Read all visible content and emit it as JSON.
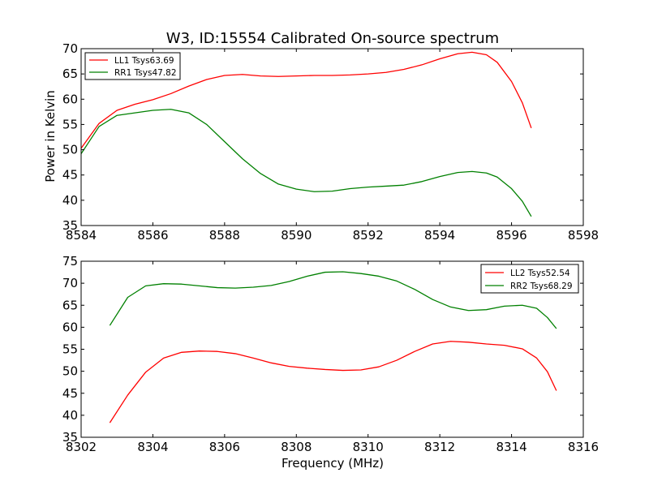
{
  "colors": {
    "red": "#ff0000",
    "green": "#008000"
  },
  "chart_data": [
    {
      "type": "line",
      "title": "W3, ID:15554 Calibrated On-source spectrum",
      "xlabel": "",
      "ylabel": "Power in Kelvin",
      "xlim": [
        8584,
        8598
      ],
      "ylim": [
        35,
        70
      ],
      "xticks": [
        "8584",
        "8586",
        "8588",
        "8590",
        "8592",
        "8594",
        "8596",
        "8598"
      ],
      "yticks": [
        "35",
        "40",
        "45",
        "50",
        "55",
        "60",
        "65",
        "70"
      ],
      "legend_position": "top-left",
      "grid": false,
      "series": [
        {
          "name": "LL1 Tsys63.69",
          "color": "#ff0000",
          "x": [
            8584.0,
            8584.5,
            8585.0,
            8585.5,
            8586.0,
            8586.5,
            8587.0,
            8587.5,
            8588.0,
            8588.5,
            8589.0,
            8589.5,
            8590.0,
            8590.5,
            8591.0,
            8591.5,
            8592.0,
            8592.5,
            8593.0,
            8593.5,
            8594.0,
            8594.5,
            8594.9,
            8595.3,
            8595.6,
            8596.0,
            8596.3,
            8596.55
          ],
          "y": [
            50.3,
            55.2,
            57.8,
            59.0,
            59.9,
            61.1,
            62.6,
            63.9,
            64.7,
            64.9,
            64.6,
            64.5,
            64.6,
            64.7,
            64.7,
            64.8,
            65.0,
            65.3,
            65.9,
            66.8,
            68.0,
            69.0,
            69.3,
            68.8,
            67.3,
            63.5,
            59.3,
            54.3
          ]
        },
        {
          "name": "RR1 Tsys47.82",
          "color": "#008000",
          "x": [
            8584.0,
            8584.5,
            8585.0,
            8585.5,
            8586.0,
            8586.5,
            8587.0,
            8587.5,
            8588.0,
            8588.5,
            8589.0,
            8589.5,
            8590.0,
            8590.5,
            8591.0,
            8591.5,
            8592.0,
            8592.5,
            8593.0,
            8593.5,
            8594.0,
            8594.5,
            8594.9,
            8595.3,
            8595.6,
            8596.0,
            8596.3,
            8596.55
          ],
          "y": [
            49.2,
            54.6,
            56.8,
            57.3,
            57.8,
            58.0,
            57.3,
            55.0,
            51.6,
            48.2,
            45.3,
            43.2,
            42.2,
            41.7,
            41.8,
            42.3,
            42.6,
            42.8,
            43.0,
            43.7,
            44.7,
            45.5,
            45.7,
            45.4,
            44.6,
            42.3,
            39.8,
            36.8
          ]
        }
      ]
    },
    {
      "type": "line",
      "title": "",
      "xlabel": "Frequency (MHz)",
      "ylabel": "",
      "xlim": [
        8302,
        8316
      ],
      "ylim": [
        35,
        75
      ],
      "xticks": [
        "8302",
        "8304",
        "8306",
        "8308",
        "8310",
        "8312",
        "8314",
        "8316"
      ],
      "yticks": [
        "35",
        "40",
        "45",
        "50",
        "55",
        "60",
        "65",
        "70",
        "75"
      ],
      "legend_position": "top-right",
      "grid": false,
      "series": [
        {
          "name": "LL2 Tsys52.54",
          "color": "#ff0000",
          "x": [
            8302.8,
            8303.3,
            8303.8,
            8304.3,
            8304.8,
            8305.3,
            8305.8,
            8306.3,
            8306.8,
            8307.3,
            8307.8,
            8308.3,
            8308.8,
            8309.3,
            8309.8,
            8310.3,
            8310.8,
            8311.3,
            8311.8,
            8312.3,
            8312.8,
            8313.3,
            8313.8,
            8314.3,
            8314.7,
            8315.0,
            8315.25
          ],
          "y": [
            38.3,
            44.6,
            49.8,
            53.0,
            54.3,
            54.6,
            54.5,
            54.0,
            53.0,
            51.9,
            51.1,
            50.7,
            50.4,
            50.2,
            50.3,
            51.0,
            52.5,
            54.5,
            56.2,
            56.8,
            56.6,
            56.2,
            55.9,
            55.1,
            53.0,
            49.9,
            45.6
          ]
        },
        {
          "name": "RR2 Tsys68.29",
          "color": "#008000",
          "x": [
            8302.8,
            8303.3,
            8303.8,
            8304.3,
            8304.8,
            8305.3,
            8305.8,
            8306.3,
            8306.8,
            8307.3,
            8307.8,
            8308.3,
            8308.8,
            8309.3,
            8309.8,
            8310.3,
            8310.8,
            8311.3,
            8311.8,
            8312.3,
            8312.8,
            8313.3,
            8313.8,
            8314.3,
            8314.7,
            8315.0,
            8315.25
          ],
          "y": [
            60.4,
            66.8,
            69.4,
            69.9,
            69.8,
            69.4,
            69.0,
            68.9,
            69.1,
            69.5,
            70.4,
            71.6,
            72.5,
            72.6,
            72.2,
            71.6,
            70.5,
            68.6,
            66.3,
            64.6,
            63.8,
            64.0,
            64.8,
            65.0,
            64.3,
            62.2,
            59.7
          ]
        }
      ]
    }
  ]
}
